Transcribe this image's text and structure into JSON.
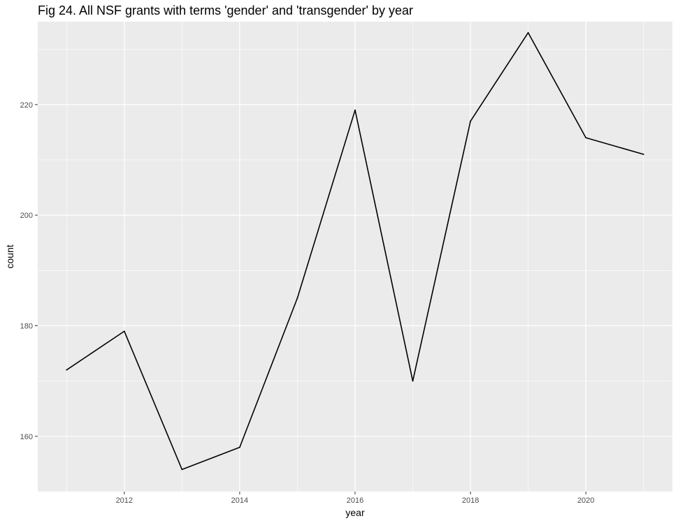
{
  "chart_data": {
    "type": "line",
    "title": "Fig 24. All NSF grants with terms 'gender' and 'transgender' by year",
    "xlabel": "year",
    "ylabel": "count",
    "x": [
      2011,
      2012,
      2013,
      2014,
      2015,
      2016,
      2017,
      2018,
      2019,
      2020,
      2021
    ],
    "series": [
      {
        "values": [
          172,
          179,
          154,
          158,
          185,
          219,
          170,
          217,
          233,
          214,
          211
        ]
      }
    ],
    "xlim": [
      2010.5,
      2021.5
    ],
    "ylim": [
      150,
      235
    ],
    "x_ticks": [
      "2012",
      "2014",
      "2016",
      "2018",
      "2020"
    ],
    "y_ticks": [
      "160",
      "180",
      "200",
      "220"
    ],
    "grid": true,
    "legend": "none",
    "colors": {
      "panel": "#ebebeb",
      "grid": "#ffffff",
      "line": "#000000"
    }
  }
}
